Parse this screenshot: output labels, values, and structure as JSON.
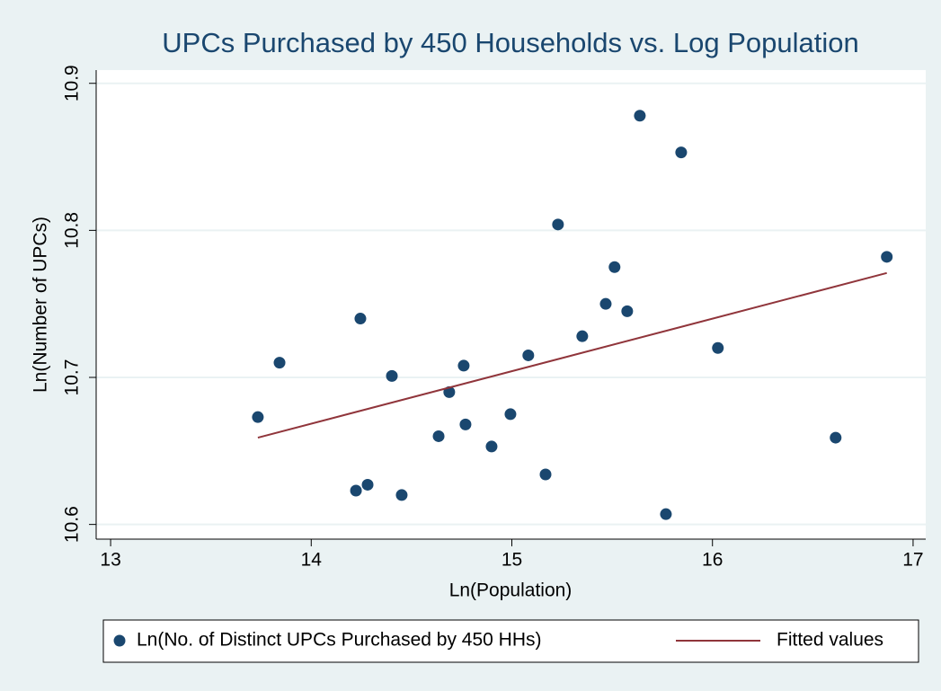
{
  "chart_data": {
    "type": "scatter",
    "title": "UPCs Purchased by 450 Households vs. Log Population",
    "x_label": "Ln(Population)",
    "y_label": "Ln(Number of UPCs)",
    "xlim": [
      12.928,
      17.063
    ],
    "ylim": [
      10.59,
      10.909
    ],
    "xticks": [
      13,
      14,
      15,
      16,
      17
    ],
    "yticks": [
      10.6,
      10.7,
      10.8,
      10.9
    ],
    "grid": true,
    "legend": "bottom",
    "series": [
      {
        "name": "Ln(No. of Distinct UPCs Purchased by 450 HHs)",
        "type": "scatter",
        "color": "#1a476f",
        "x": [
          13.734,
          13.842,
          14.245,
          14.223,
          14.281,
          14.402,
          14.451,
          14.635,
          14.688,
          14.76,
          14.769,
          14.899,
          14.993,
          15.082,
          15.168,
          15.23,
          15.351,
          15.468,
          15.512,
          15.575,
          15.638,
          15.768,
          15.844,
          16.027,
          16.614,
          16.869
        ],
        "values": [
          10.673,
          10.71,
          10.74,
          10.623,
          10.627,
          10.701,
          10.62,
          10.66,
          10.69,
          10.708,
          10.668,
          10.653,
          10.675,
          10.715,
          10.634,
          10.804,
          10.728,
          10.75,
          10.775,
          10.745,
          10.878,
          10.607,
          10.853,
          10.72,
          10.659,
          10.782
        ]
      },
      {
        "name": "Fitted values",
        "type": "line",
        "color": "#90353b",
        "x": [
          13.734,
          16.869
        ],
        "values": [
          10.659,
          10.771
        ]
      }
    ]
  }
}
